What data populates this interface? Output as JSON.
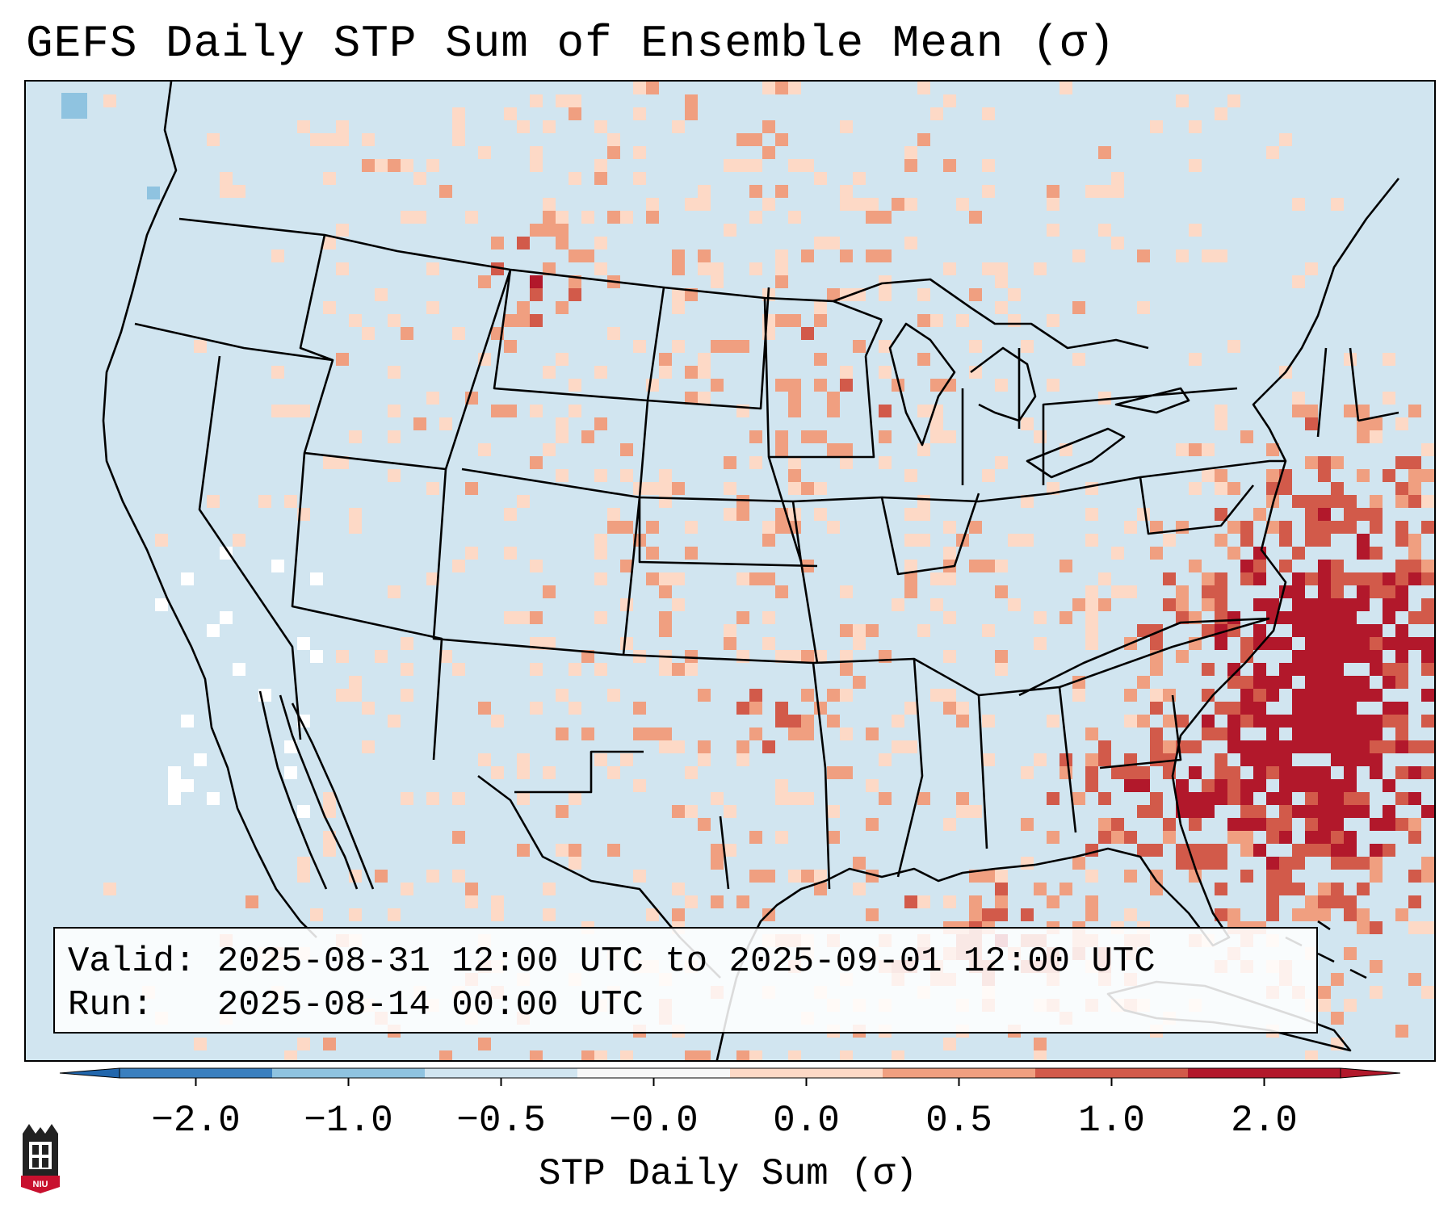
{
  "title": "GEFS Daily STP Sum of Ensemble Mean (σ)",
  "info": {
    "valid_line": "Valid: 2025-08-31 12:00 UTC to 2025-09-01 12:00 UTC",
    "run_line": "Run:   2025-08-14 00:00 UTC"
  },
  "colorbar": {
    "label": "STP Daily Sum (σ)",
    "ticks": [
      "−2.0",
      "−1.0",
      "−0.5",
      "−0.0",
      "0.0",
      "0.5",
      "1.0",
      "2.0"
    ],
    "colors": [
      "#3a7fbf",
      "#8fc3e0",
      "#d1e5f0",
      "#f7f7f7",
      "#fdd9c6",
      "#f09f80",
      "#d25a4a",
      "#b2182b"
    ],
    "extend_low_color": "#2166ac",
    "extend_high_color": "#b2182b"
  },
  "map": {
    "background_color": "#d1e5f0",
    "region": "Continental United States, southern Canada, Mexico, Gulf of Mexico, western Atlantic",
    "highlights": [
      "Strong positive STP (>1σ) off the Southeast US coast and over the western Atlantic",
      "Scattered positive anomalies across northern Plains, Montana, Minnesota and Gulf coast",
      "Slight negative values along the California coast"
    ]
  },
  "logo": {
    "text": "NIU"
  }
}
